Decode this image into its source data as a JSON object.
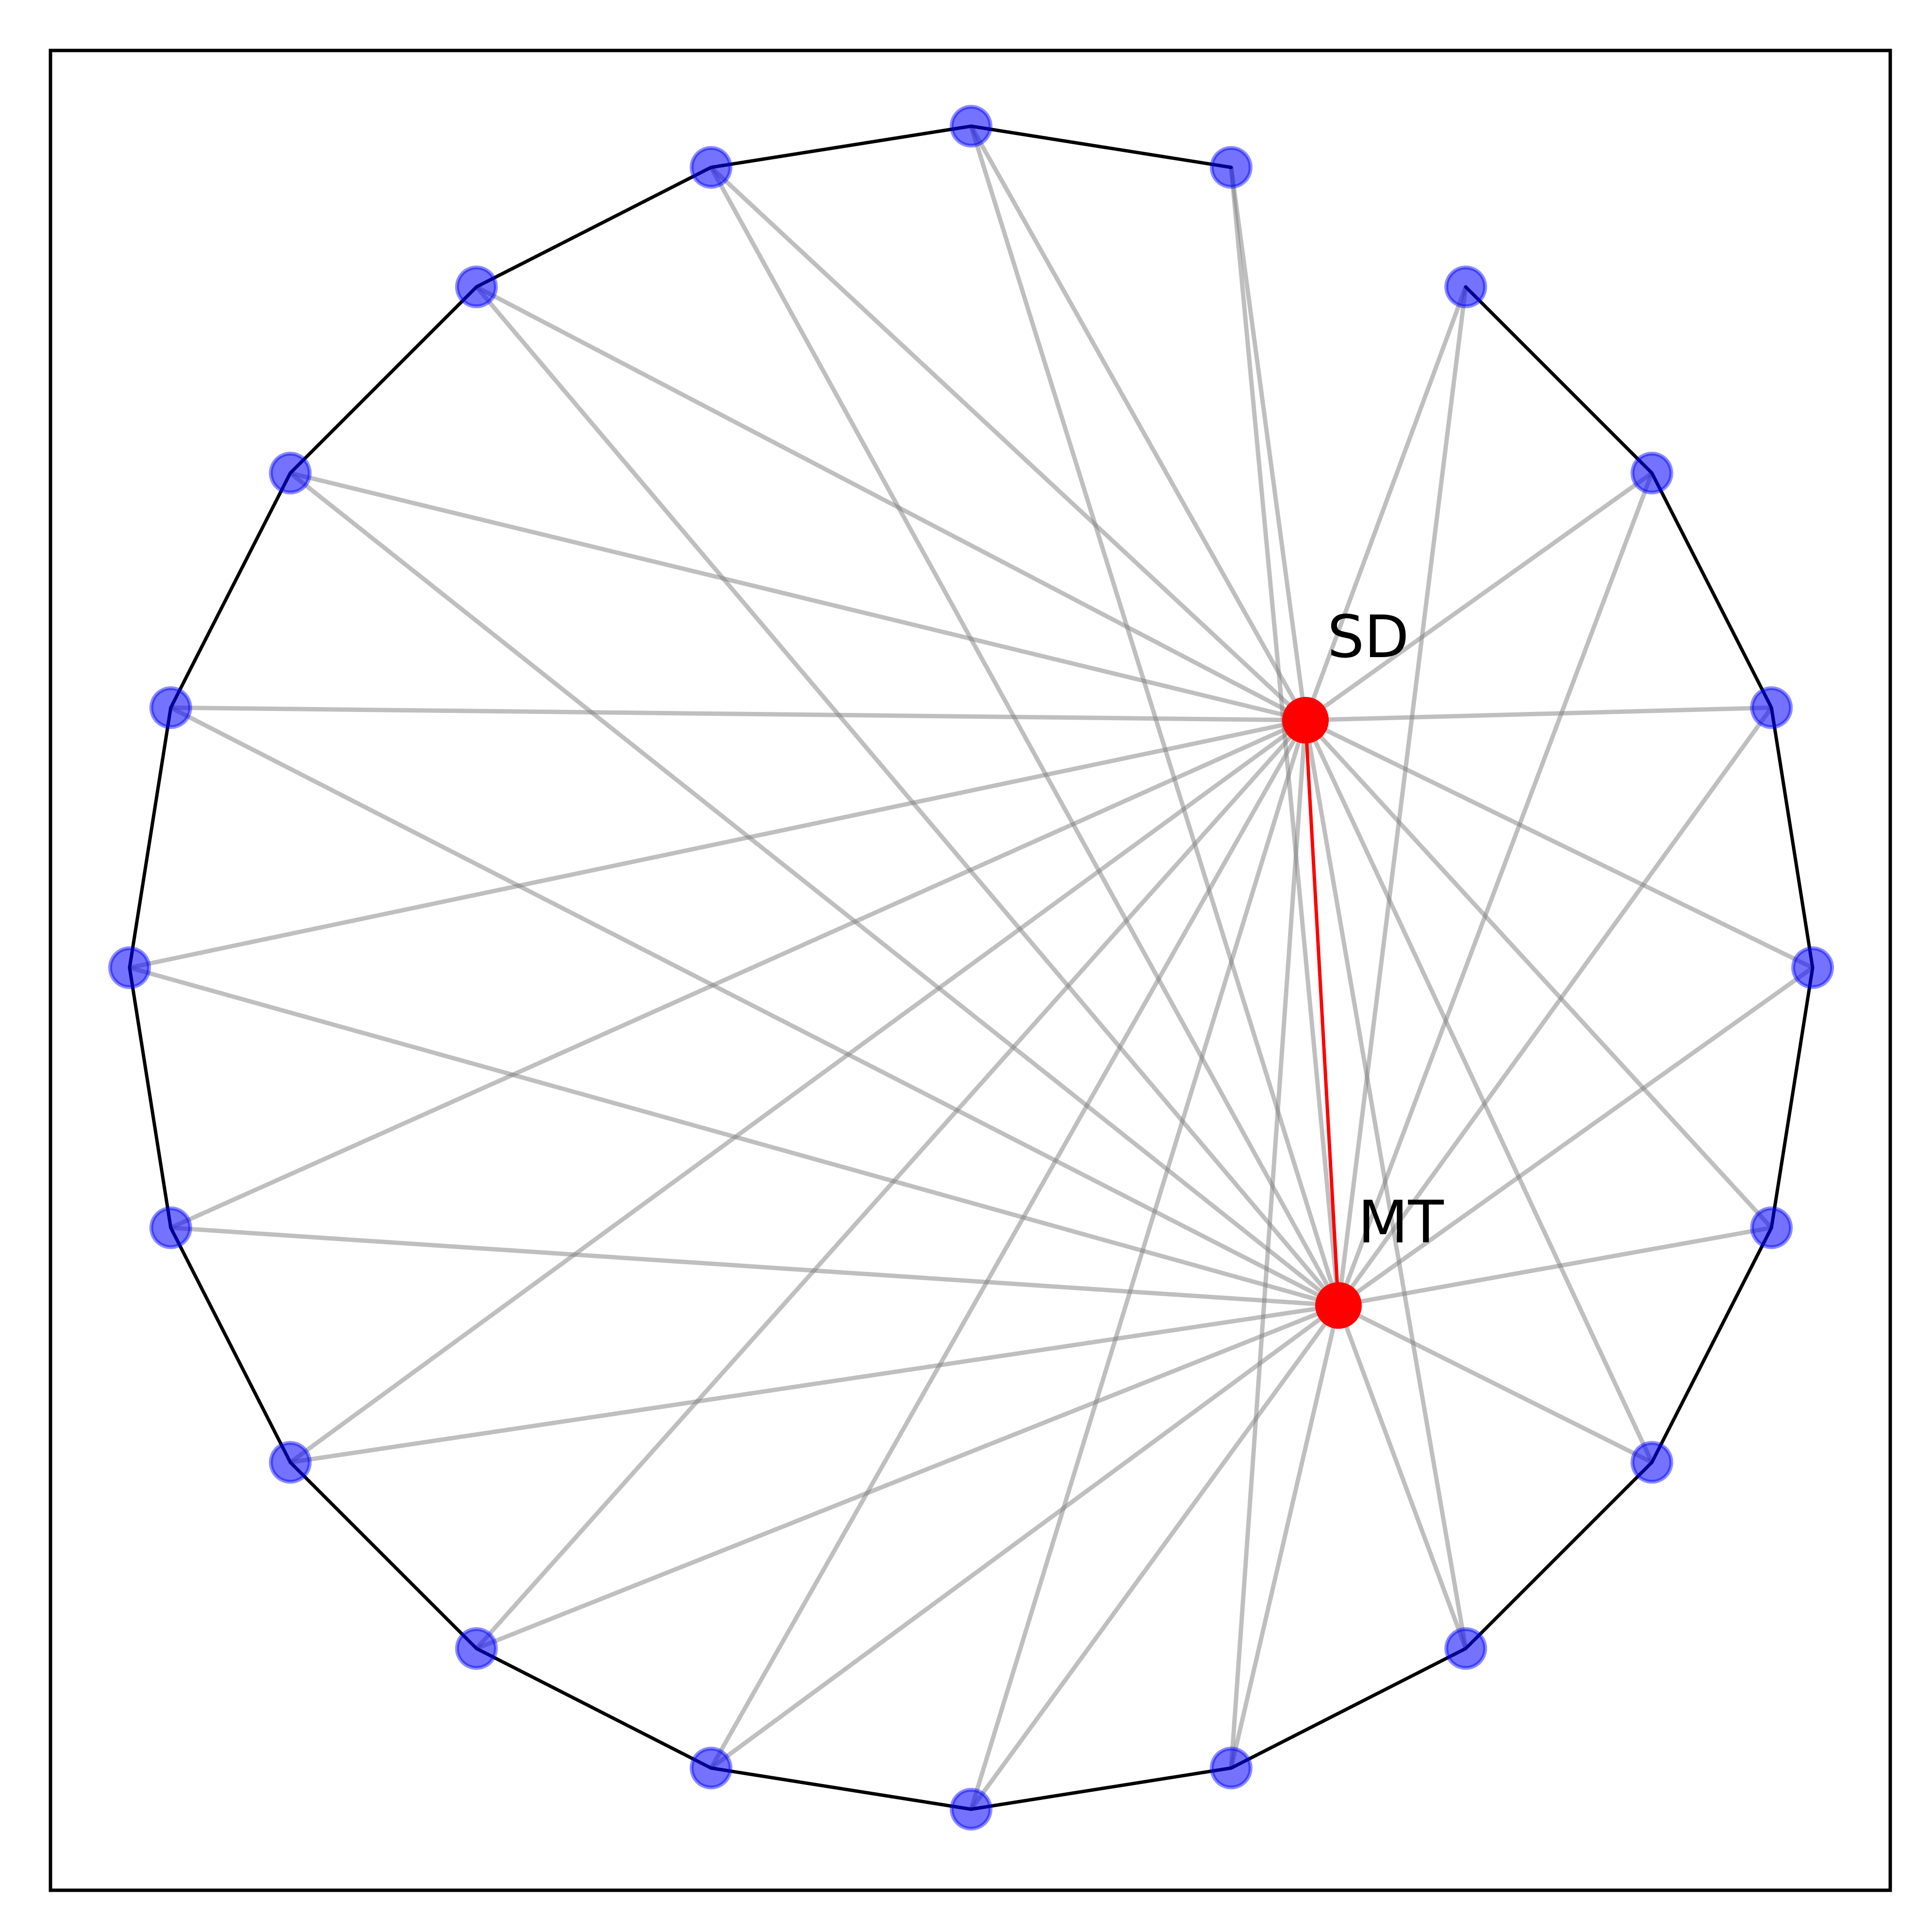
{
  "diagram": {
    "node_count": 20,
    "colors": {
      "background": "#ffffff",
      "frame": "#000000",
      "ring_edge": "#000000",
      "node_fill": "#0000ff",
      "spoke": "#808080",
      "hub_fill": "#ff0000",
      "hub_edge": "#ff0000"
    },
    "hubs": [
      {
        "id": "sd",
        "label": "SD"
      },
      {
        "id": "mt",
        "label": "MT"
      }
    ],
    "ring_edges_missing": [
      [
        3,
        4
      ]
    ]
  }
}
